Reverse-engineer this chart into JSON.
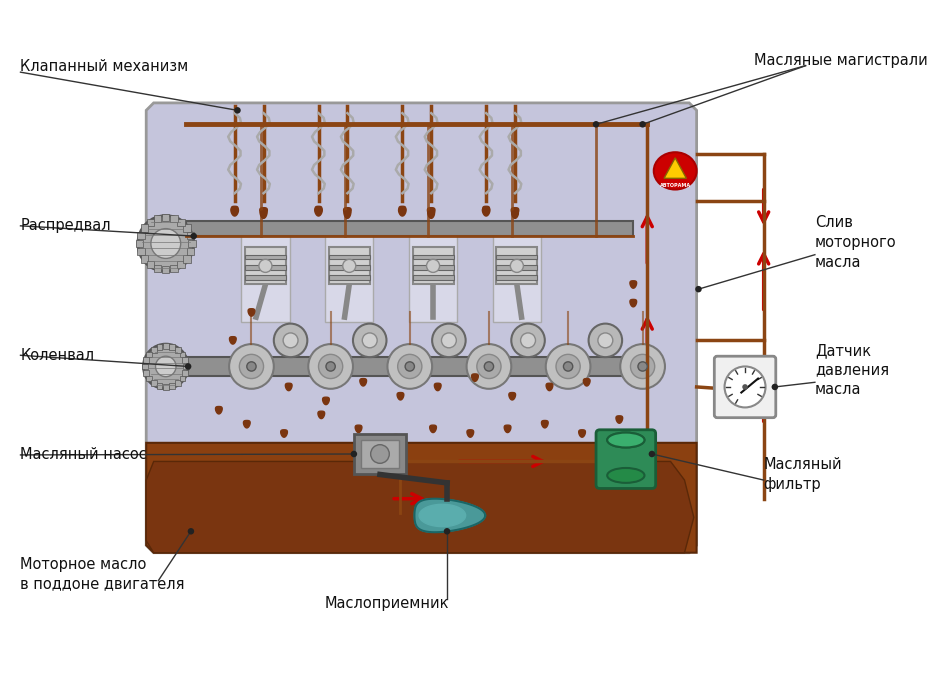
{
  "title": "",
  "bg_color": "#ffffff",
  "engine_block_color": "#c5c5dc",
  "engine_block_edge_color": "#999999",
  "oil_pan_color": "#8B4010",
  "oil_line_color": "#8B4513",
  "arrow_color": "#cc0000",
  "oil_filter_color": "#2e8b57",
  "oil_drop_color": "#7a3510",
  "labels": {
    "valve_mechanism": "Клапанный механизм",
    "oil_mains": "Масляные магистрали",
    "camshaft": "Распредвал",
    "oil_drain": "Слив\nмоторного\nмасла",
    "crankshaft": "Коленвал",
    "oil_pressure_sensor": "Датчик\nдавления\nмасла",
    "oil_pump": "Масляный насос",
    "oil_filter": "Масляный\nфильтр",
    "oil_sump": "Моторное масло\nв поддоне двигателя",
    "oil_strainer": "Маслоприемник"
  },
  "figsize": [
    9.48,
    6.91
  ],
  "dpi": 100
}
